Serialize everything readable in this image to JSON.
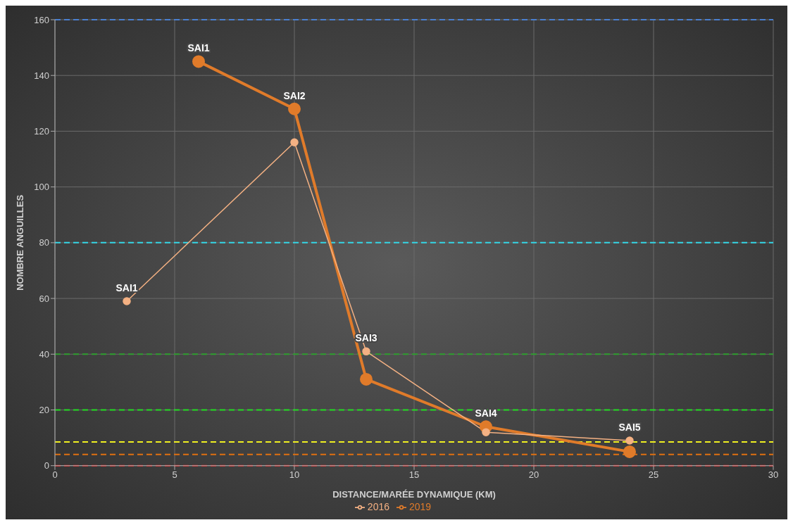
{
  "chart_data": {
    "type": "line",
    "xlabel": "DISTANCE/MARÉE DYNAMIQUE (KM)",
    "ylabel": "NOMBRE ANGUILLES",
    "series": [
      {
        "name": "2016",
        "color": "#f4b183",
        "x": [
          3,
          10,
          13,
          18,
          24
        ],
        "values": [
          59,
          116,
          41,
          12,
          9
        ]
      },
      {
        "name": "2019",
        "color": "#e07b2a",
        "x": [
          6,
          10,
          13,
          18,
          24
        ],
        "values": [
          145,
          128,
          31,
          14,
          5
        ]
      }
    ],
    "xlim": [
      0,
      30
    ],
    "xticks": [
      0,
      5,
      10,
      15,
      20,
      25,
      30
    ],
    "ylim": [
      0,
      160
    ],
    "yticks": [
      0,
      20,
      40,
      60,
      80,
      100,
      120,
      140,
      160
    ],
    "grid": true,
    "legend": "bottom",
    "marker": "circle",
    "line_style": "solid",
    "ref_lines": [
      {
        "axis": "y",
        "value": 160,
        "color": "#4a7fd0",
        "line_style": "dashed"
      },
      {
        "axis": "y",
        "value": 80,
        "color": "#33d6e6",
        "line_style": "dashed"
      },
      {
        "axis": "y",
        "value": 40,
        "color": "#2e9e2e",
        "line_style": "dashed"
      },
      {
        "axis": "y",
        "value": 20,
        "color": "#22dd22",
        "line_style": "dashed"
      },
      {
        "axis": "y",
        "value": 8.5,
        "color": "#f0f020",
        "line_style": "dashed"
      },
      {
        "axis": "y",
        "value": 4,
        "color": "#e07010",
        "line_style": "dashed"
      },
      {
        "axis": "y",
        "value": 0,
        "color": "#e02020",
        "line_style": "dashed"
      }
    ],
    "annotations": [
      {
        "text": "SAI1",
        "x": 3,
        "y": 59
      },
      {
        "text": "SAI1",
        "x": 6,
        "y": 145
      },
      {
        "text": "SAI2",
        "x": 10,
        "y": 128
      },
      {
        "text": "SAI3",
        "x": 13,
        "y": 41
      },
      {
        "text": "SAI4",
        "x": 18,
        "y": 14
      },
      {
        "text": "SAI5",
        "x": 24,
        "y": 9
      }
    ]
  }
}
